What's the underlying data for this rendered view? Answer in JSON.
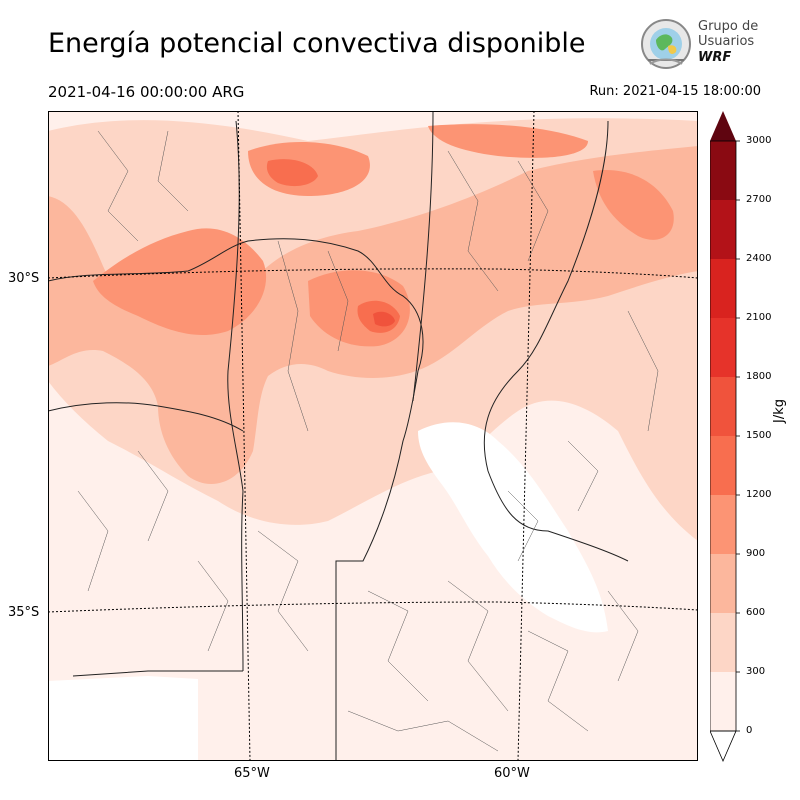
{
  "header": {
    "title": "Energía potencial convectiva disponible",
    "valid_time": "2021-04-16 00:00:00 ARG",
    "run_time": "Run: 2021-04-15 18:00:00"
  },
  "logo": {
    "line1": "Grupo de",
    "line2": "Usuarios",
    "brand": "WRF"
  },
  "map": {
    "lat_labels": [
      "30°S",
      "35°S"
    ],
    "lon_labels": [
      "65°W",
      "60°W"
    ],
    "colors": {
      "level0": "#fff0eb",
      "level1": "#fdd6c6",
      "level2": "#fcb79d",
      "level3": "#fc9474",
      "level4": "#f86e4f",
      "level5": "#f0533c",
      "level6": "#d9231f",
      "level7": "#b31218",
      "level8": "#8a0a12",
      "level9": "#5f0510"
    }
  },
  "colorbar": {
    "unit": "J/kg",
    "ticks": [
      "3000",
      "2700",
      "2400",
      "2100",
      "1800",
      "1500",
      "1200",
      "900",
      "600",
      "300",
      "0"
    ]
  }
}
